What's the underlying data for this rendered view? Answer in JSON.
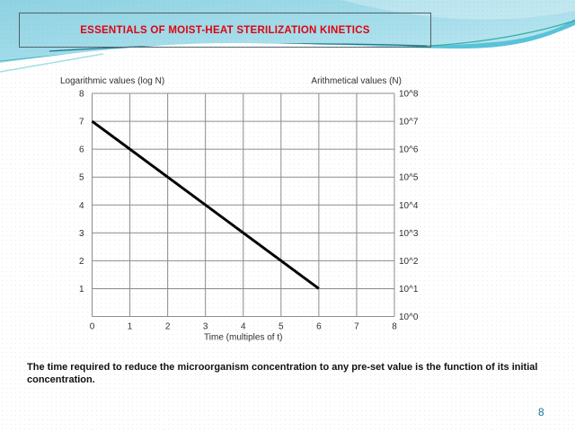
{
  "slide": {
    "title": "ESSENTIALS OF MOIST-HEAT STERILIZATION KINETICS",
    "caption": "The time required to reduce the microorganism concentration to any pre-set value is the function of its initial concentration.",
    "page_number": "8"
  },
  "colors": {
    "title_red": "#e1000f",
    "page_teal": "#17748f",
    "box_border": "#4f6068",
    "header_cyan_dark": "#8ed2e2",
    "header_cyan_light": "#cdeef6",
    "wave_blue": "#52c1d8",
    "wave_teal_line": "#2ba89b",
    "wave_dark_line": "#1d7888",
    "grid_gray": "#8c8c8c",
    "chart_text": "#2e2e2e",
    "series_black": "#000000"
  },
  "chart_data": {
    "type": "line",
    "left_axis_label": "Logarithmic values (log N)",
    "right_axis_label": "Arithmetical values (N)",
    "xlabel": "Time (multiples of t)",
    "xlim": [
      0,
      8
    ],
    "ylim": [
      0,
      8
    ],
    "grid": true,
    "x_ticks": [
      {
        "v": 0,
        "label": "0"
      },
      {
        "v": 1,
        "label": "1"
      },
      {
        "v": 2,
        "label": "2"
      },
      {
        "v": 3,
        "label": "3"
      },
      {
        "v": 4,
        "label": "4"
      },
      {
        "v": 5,
        "label": "5"
      },
      {
        "v": 6,
        "label": "6"
      },
      {
        "v": 7,
        "label": "7"
      },
      {
        "v": 8,
        "label": "8"
      }
    ],
    "y_ticks_left": [
      {
        "v": 8,
        "label": "8"
      },
      {
        "v": 7,
        "label": "7"
      },
      {
        "v": 6,
        "label": "6"
      },
      {
        "v": 5,
        "label": "5"
      },
      {
        "v": 4,
        "label": "4"
      },
      {
        "v": 3,
        "label": "3"
      },
      {
        "v": 2,
        "label": "2"
      },
      {
        "v": 1,
        "label": "1"
      }
    ],
    "y_ticks_right": [
      {
        "v": 8,
        "label": "10^8"
      },
      {
        "v": 7,
        "label": "10^7"
      },
      {
        "v": 6,
        "label": "10^6"
      },
      {
        "v": 5,
        "label": "10^5"
      },
      {
        "v": 4,
        "label": "10^4"
      },
      {
        "v": 3,
        "label": "10^3"
      },
      {
        "v": 2,
        "label": "10^2"
      },
      {
        "v": 1,
        "label": "10^1"
      },
      {
        "v": 0,
        "label": "10^0"
      }
    ],
    "series": [
      {
        "points": [
          [
            0,
            7
          ],
          [
            6,
            1
          ]
        ],
        "color": "#000000"
      }
    ]
  }
}
